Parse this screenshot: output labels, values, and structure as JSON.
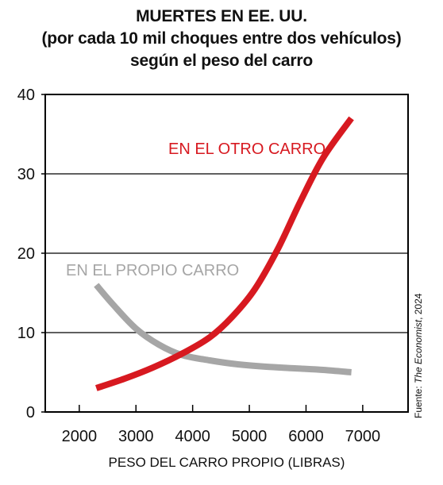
{
  "title_lines": [
    "MUERTES EN EE. UU.",
    "(por cada 10 mil choques entre dos vehículos)",
    "según el peso del carro"
  ],
  "source": {
    "prefix": "Fuente: ",
    "publication": "The Economist",
    "suffix": ", 2024"
  },
  "colors": {
    "other_car": "#d71920",
    "own_car": "#a6a6a6",
    "axis": "#000000"
  },
  "chart_data": {
    "type": "line",
    "title": "MUERTES EN EE. UU. (por cada 10 mil choques entre dos vehículos) según el peso del carro",
    "xlabel": "PESO DEL CARRO PROPIO (LIBRAS)",
    "ylabel": "",
    "xlim": [
      1400,
      7800
    ],
    "ylim": [
      0,
      40
    ],
    "xticks": [
      2000,
      3000,
      4000,
      5000,
      6000,
      7000
    ],
    "yticks": [
      0,
      10,
      20,
      30,
      40
    ],
    "grid": "horizontal",
    "series": [
      {
        "name": "EN EL OTRO CARRO",
        "color": "#d71920",
        "x": [
          2300,
          2800,
          3300,
          3800,
          4300,
          4700,
          5100,
          5500,
          5900,
          6300,
          6800
        ],
        "y": [
          3.0,
          4.2,
          5.6,
          7.3,
          9.4,
          12.0,
          15.5,
          20.5,
          26.5,
          32.0,
          37.0
        ]
      },
      {
        "name": "EN EL PROPIO CARRO",
        "color": "#a6a6a6",
        "x": [
          2300,
          2600,
          3000,
          3400,
          3800,
          4300,
          4800,
          5300,
          5800,
          6300,
          6800
        ],
        "y": [
          16.0,
          13.5,
          10.5,
          8.5,
          7.2,
          6.5,
          6.0,
          5.7,
          5.5,
          5.3,
          5.0
        ]
      }
    ]
  }
}
